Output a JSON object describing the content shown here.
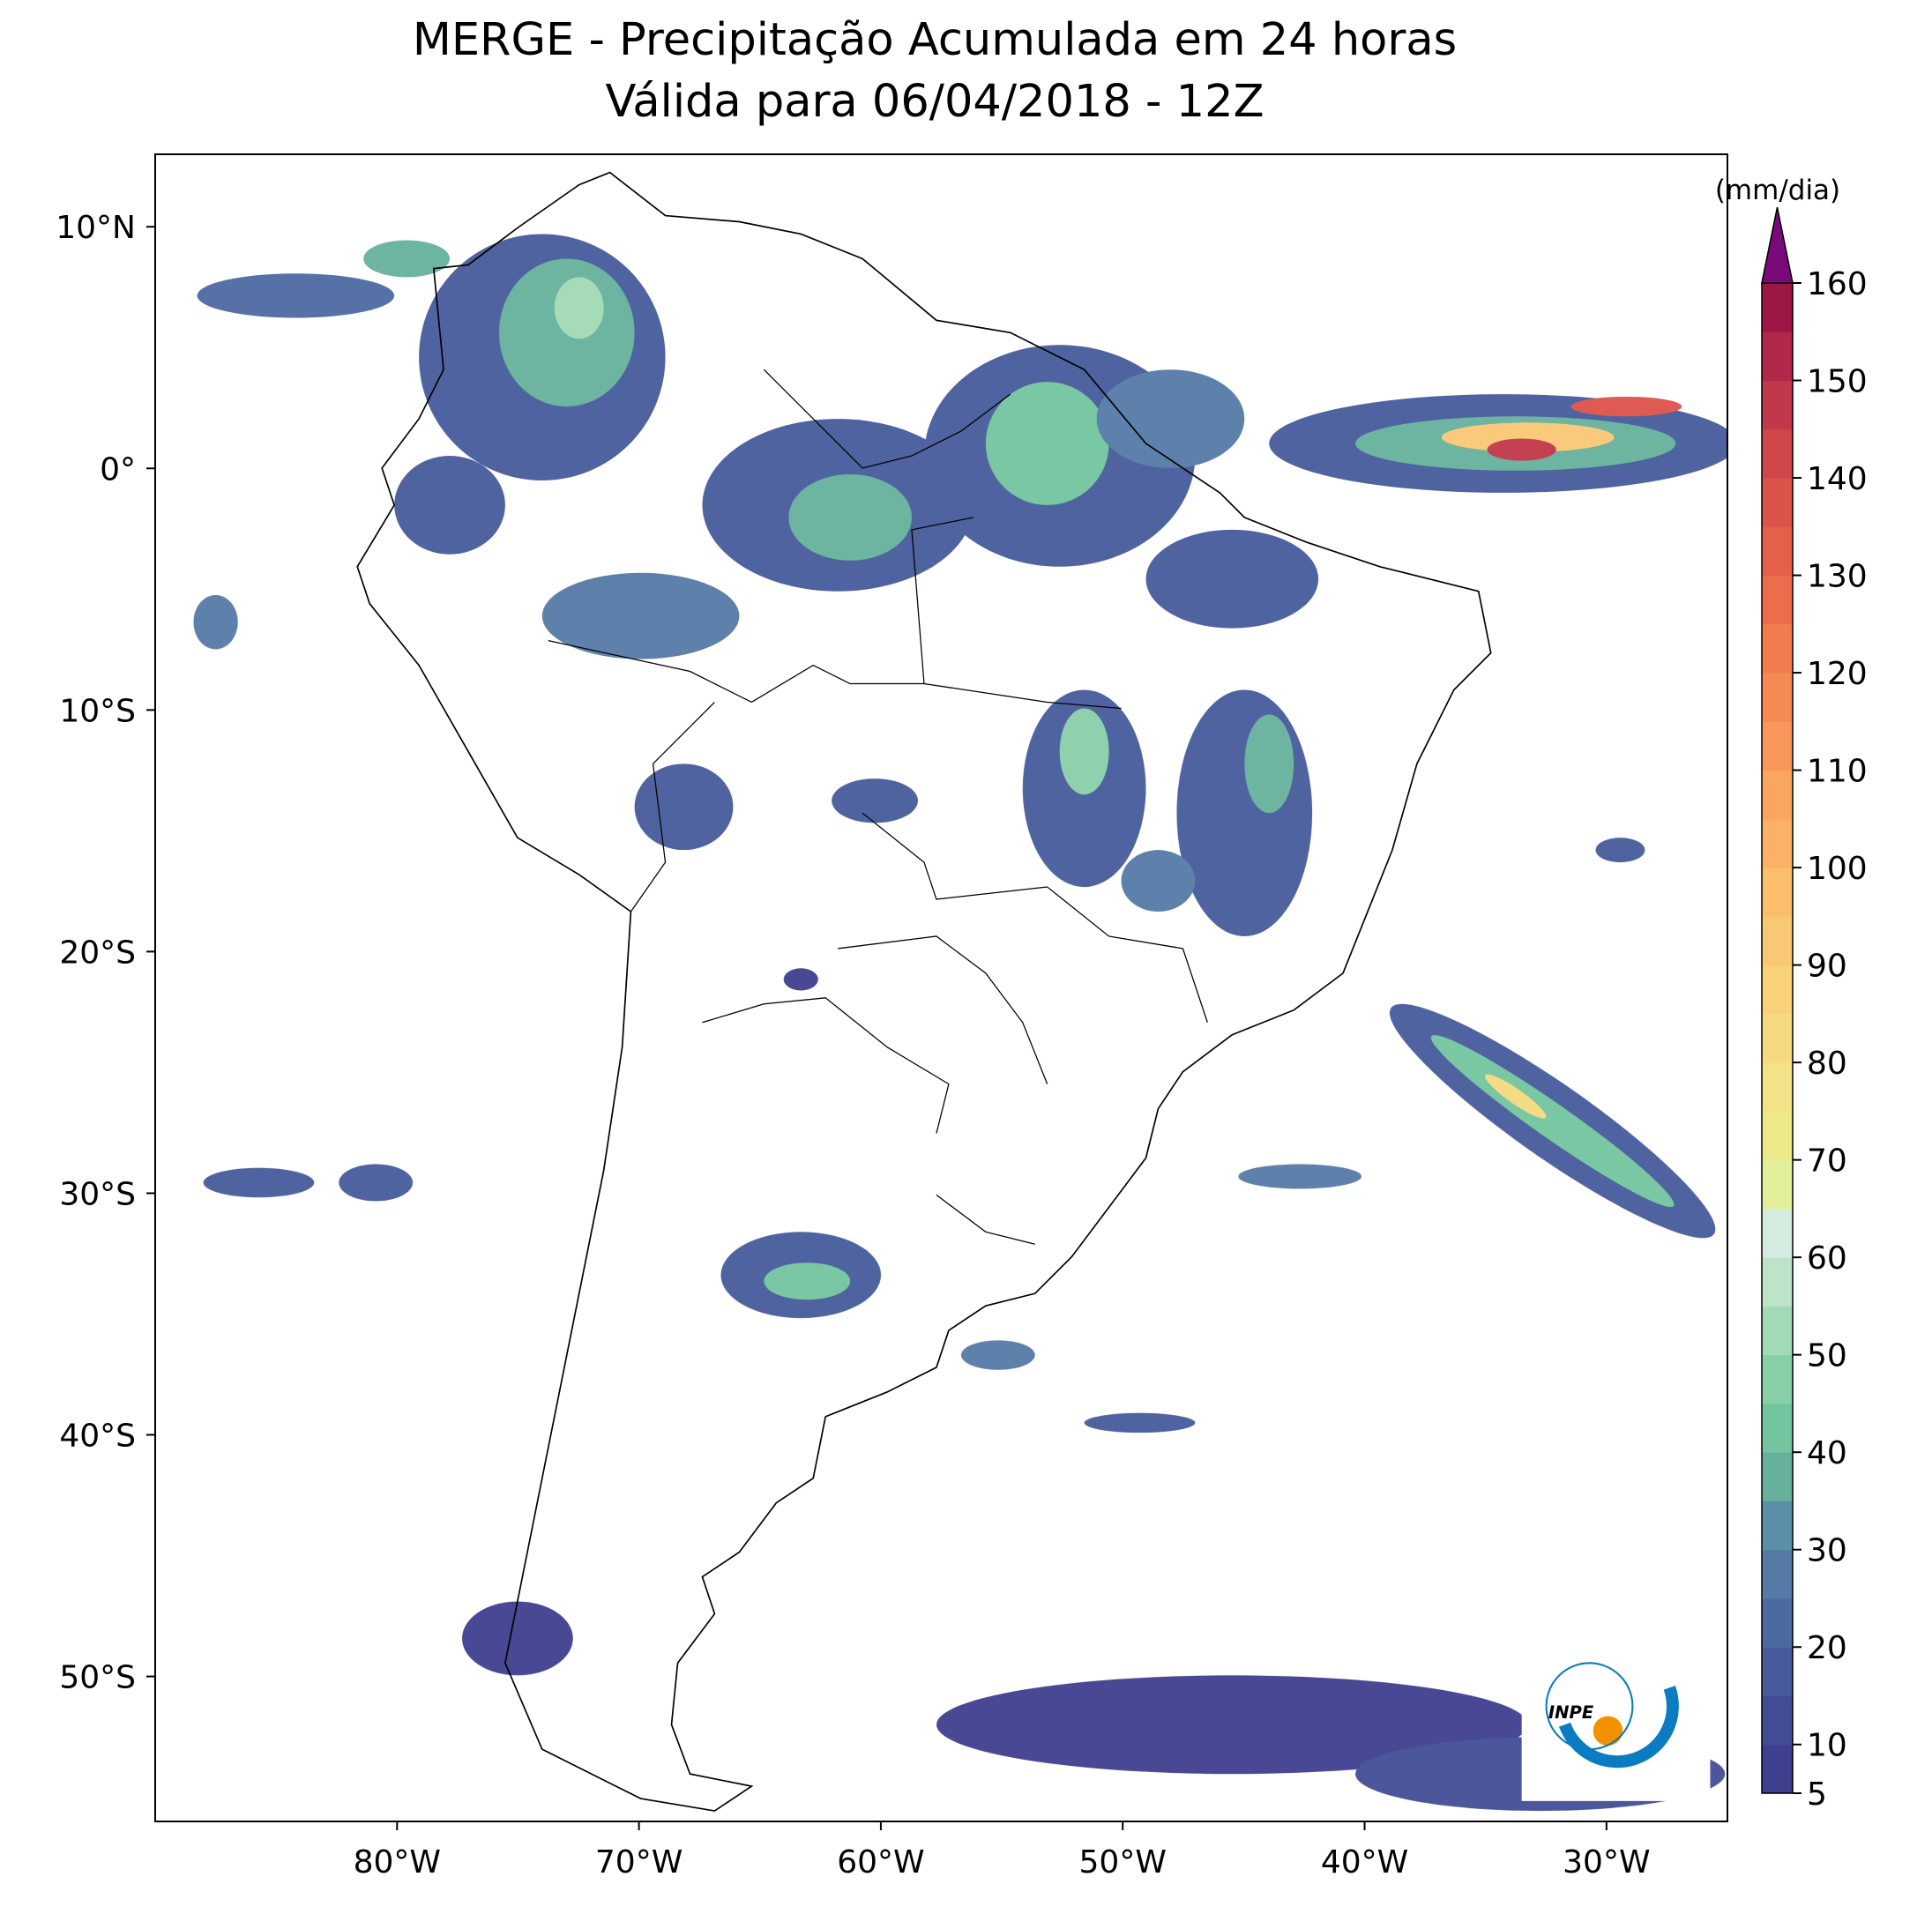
{
  "map": {
    "title": "MERGE - Precipitação Acumulada em 24 horas",
    "subtitle": "Válida para 06/04/2018 - 12Z",
    "xlim": [
      -90,
      -25
    ],
    "ylim": [
      -56,
      13
    ],
    "xticks": [
      {
        "value": -80,
        "label": "80°W"
      },
      {
        "value": -70,
        "label": "70°W"
      },
      {
        "value": -60,
        "label": "60°W"
      },
      {
        "value": -50,
        "label": "50°W"
      },
      {
        "value": -40,
        "label": "40°W"
      },
      {
        "value": -30,
        "label": "30°W"
      }
    ],
    "yticks": [
      {
        "value": 10,
        "label": "10°N"
      },
      {
        "value": 0,
        "label": "0°"
      },
      {
        "value": -10,
        "label": "10°S"
      },
      {
        "value": -20,
        "label": "20°S"
      },
      {
        "value": -30,
        "label": "30°S"
      },
      {
        "value": -40,
        "label": "40°S"
      },
      {
        "value": -50,
        "label": "50°S"
      }
    ],
    "colorbar": {
      "label": "(mm/dia)",
      "levels": [
        5,
        10,
        15,
        20,
        25,
        30,
        35,
        40,
        45,
        50,
        55,
        60,
        65,
        70,
        75,
        80,
        85,
        90,
        95,
        100,
        105,
        110,
        115,
        120,
        125,
        130,
        135,
        140,
        145,
        150,
        155,
        160
      ],
      "colors": [
        "#3f3f8f",
        "#434d95",
        "#475b9c",
        "#4c6aa2",
        "#557ba6",
        "#5b8ea7",
        "#66b09c",
        "#73c59f",
        "#88cfa8",
        "#a2dab5",
        "#bde4c8",
        "#d4ecdf",
        "#e3ee9b",
        "#ece988",
        "#f2e388",
        "#f6da80",
        "#f8d179",
        "#f9c874",
        "#fbbf6c",
        "#fbb266",
        "#faa560",
        "#f9975a",
        "#f68a54",
        "#f27c4e",
        "#ec6d4b",
        "#e56049",
        "#dc5349",
        "#d0464a",
        "#c1374b",
        "#b1284a",
        "#9d1746"
      ],
      "extend_color": "#7a0a7a",
      "ticks": [
        5,
        10,
        20,
        30,
        40,
        50,
        60,
        70,
        80,
        90,
        100,
        110,
        120,
        130,
        140,
        150,
        160
      ]
    },
    "logo": "INPE"
  }
}
